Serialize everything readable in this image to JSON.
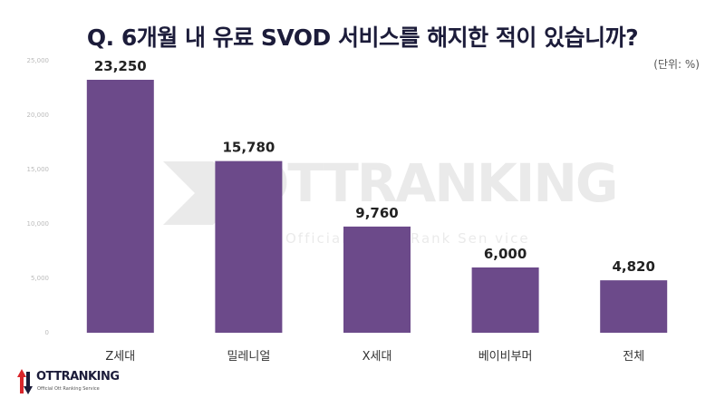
{
  "colors": {
    "bar": "#6c4a8a",
    "title": "#1c1c3a",
    "logo_red": "#d9262b"
  },
  "header": {
    "title": "Q. 6개월 내 유료 SVOD 서비스를 해지한 적이 있습니까?",
    "unit_note": "(단위: %)"
  },
  "watermark": {
    "brand": "OTTRANKING",
    "tagline": "Official Grand Rank Sen vice"
  },
  "logo": {
    "brand": "OTTRANKING",
    "tagline": "Official Ott Ranking Service"
  },
  "chart_data": {
    "type": "bar",
    "categories": [
      "Z세대",
      "밀레니얼",
      "X세대",
      "베이비부머",
      "전체"
    ],
    "values": [
      23250,
      15780,
      9760,
      6000,
      4820
    ],
    "value_labels": [
      "23,250",
      "15,780",
      "9,760",
      "6,000",
      "4,820"
    ],
    "ylim": [
      0,
      25000
    ],
    "yticks": [
      0,
      5000,
      10000,
      15000,
      20000,
      25000
    ],
    "ytick_labels": [
      "0",
      "5,000",
      "10,000",
      "15,000",
      "20,000",
      "25,000"
    ],
    "grid": false,
    "legend": "none"
  }
}
